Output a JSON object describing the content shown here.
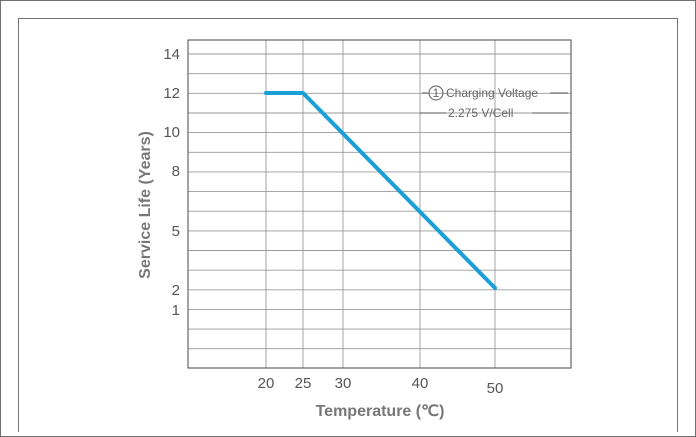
{
  "chart_data": {
    "type": "line",
    "xlabel": "Temperature (℃)",
    "ylabel": "Service Life (Years)",
    "x_ticks": [
      20,
      25,
      30,
      40,
      50
    ],
    "x_tick_labels": [
      "20",
      "25",
      "30",
      "40",
      "50"
    ],
    "y_ticks": [
      1,
      2,
      5,
      8,
      10,
      12,
      14
    ],
    "y_tick_labels": [
      "1",
      "2",
      "5",
      "8",
      "10",
      "12",
      "14"
    ],
    "series": [
      {
        "x": [
          20,
          25,
          50
        ],
        "y": [
          12,
          12,
          2.1
        ],
        "color": "#1a9fd6"
      }
    ],
    "annotation": {
      "marker": "①",
      "line1": "Charging Voltage",
      "line2": "2.275 V/Cell"
    },
    "grid": true
  }
}
